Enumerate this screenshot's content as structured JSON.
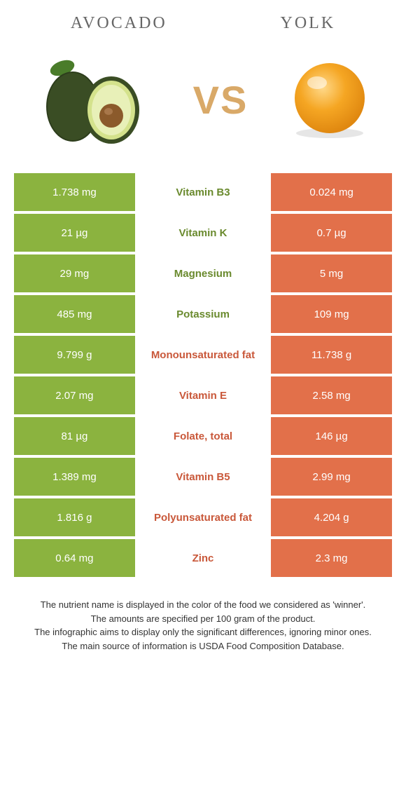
{
  "header": {
    "left_title": "Avocado",
    "right_title": "Yolk"
  },
  "vs_label": "VS",
  "colors": {
    "avocado": "#8bb33f",
    "yolk": "#e2704a",
    "mid_avocado": "#6a8a2e",
    "mid_yolk": "#c9583a",
    "vs": "#d9a968",
    "title": "#666666",
    "footer": "#333333"
  },
  "fonts": {
    "title_size": 24,
    "title_spacing": 3,
    "vs_size": 56,
    "cell_size": 15,
    "footer_size": 13
  },
  "rows": [
    {
      "left": "1.738 mg",
      "mid": "Vitamin B3",
      "right": "0.024 mg",
      "winner": "avocado"
    },
    {
      "left": "21 µg",
      "mid": "Vitamin K",
      "right": "0.7 µg",
      "winner": "avocado"
    },
    {
      "left": "29 mg",
      "mid": "Magnesium",
      "right": "5 mg",
      "winner": "avocado"
    },
    {
      "left": "485 mg",
      "mid": "Potassium",
      "right": "109 mg",
      "winner": "avocado"
    },
    {
      "left": "9.799 g",
      "mid": "Monounsaturated fat",
      "right": "11.738 g",
      "winner": "yolk"
    },
    {
      "left": "2.07 mg",
      "mid": "Vitamin E",
      "right": "2.58 mg",
      "winner": "yolk"
    },
    {
      "left": "81 µg",
      "mid": "Folate, total",
      "right": "146 µg",
      "winner": "yolk"
    },
    {
      "left": "1.389 mg",
      "mid": "Vitamin B5",
      "right": "2.99 mg",
      "winner": "yolk"
    },
    {
      "left": "1.816 g",
      "mid": "Polyunsaturated fat",
      "right": "4.204 g",
      "winner": "yolk"
    },
    {
      "left": "0.64 mg",
      "mid": "Zinc",
      "right": "2.3 mg",
      "winner": "yolk"
    }
  ],
  "footer": {
    "line1": "The nutrient name is displayed in the color of the food we considered as 'winner'.",
    "line2": "The amounts are specified per 100 gram of the product.",
    "line3": "The infographic aims to display only the significant differences, ignoring minor ones.",
    "line4": "The main source of information is USDA Food Composition Database."
  }
}
